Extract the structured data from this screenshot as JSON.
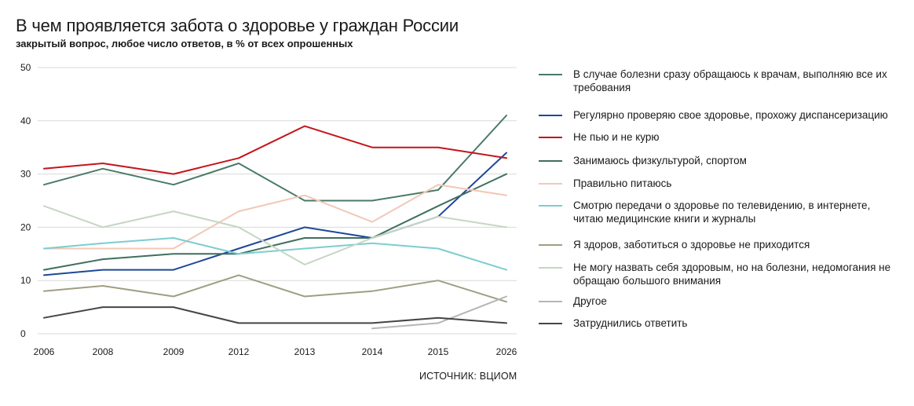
{
  "title": "В чем проявляется забота о здоровье у граждан России",
  "subtitle": "закрытый вопрос, любое число ответов, в % от всех опрошенных",
  "source": "ИСТОЧНИК: ВЦИОМ",
  "chart_data": {
    "type": "line",
    "categories": [
      "2006",
      "2008",
      "2009",
      "2012",
      "2013",
      "2014",
      "2015",
      "2026"
    ],
    "ylim": [
      0,
      50
    ],
    "yticks": [
      0,
      10,
      20,
      30,
      40,
      50
    ],
    "grid": "horizontal",
    "legend": "right",
    "series": [
      {
        "name": "В случае болезни сразу обращаюсь к врачам, выполняю все их требования",
        "color": "#4a7a68",
        "values": [
          28,
          31,
          28,
          32,
          25,
          25,
          27,
          41
        ]
      },
      {
        "name": "Регулярно проверяю свое здоровье, прохожу диспансеризацию",
        "color": "#1f4898",
        "values": [
          11,
          12,
          12,
          16,
          20,
          18,
          22,
          34
        ]
      },
      {
        "name": "Не пью и не курю",
        "color": "#c4151c",
        "values": [
          31,
          32,
          30,
          33,
          39,
          35,
          35,
          33
        ]
      },
      {
        "name": "Занимаюсь физкультурой, спортом",
        "color": "#3f6f5e",
        "values": [
          12,
          14,
          15,
          15,
          18,
          18,
          24,
          30
        ]
      },
      {
        "name": "Правильно питаюсь",
        "color": "#f2c8b6",
        "values": [
          16,
          16,
          16,
          23,
          26,
          21,
          28,
          26
        ]
      },
      {
        "name": "Смотрю передачи о здоровье по телевидению, в интернете, читаю медицинские книги и журналы",
        "color": "#7ccdd0",
        "values": [
          16,
          17,
          18,
          15,
          16,
          17,
          16,
          12
        ]
      },
      {
        "name": "Я здоров, заботиться о здоровье не приходится",
        "color": "#a09e82",
        "values": [
          8,
          9,
          7,
          11,
          7,
          8,
          10,
          6
        ]
      },
      {
        "name": "Не могу назвать себя здоровым, но на болезни, недомогания не обращаю большого внимания",
        "color": "#c6d6c4",
        "values": [
          24,
          20,
          23,
          20,
          13,
          18,
          22,
          20
        ]
      },
      {
        "name": "Другое",
        "color": "#b6b6b6",
        "values": [
          null,
          null,
          null,
          null,
          null,
          1,
          2,
          7
        ]
      },
      {
        "name": "Затруднились ответить",
        "color": "#454545",
        "values": [
          3,
          5,
          5,
          2,
          2,
          2,
          3,
          2
        ]
      }
    ]
  }
}
